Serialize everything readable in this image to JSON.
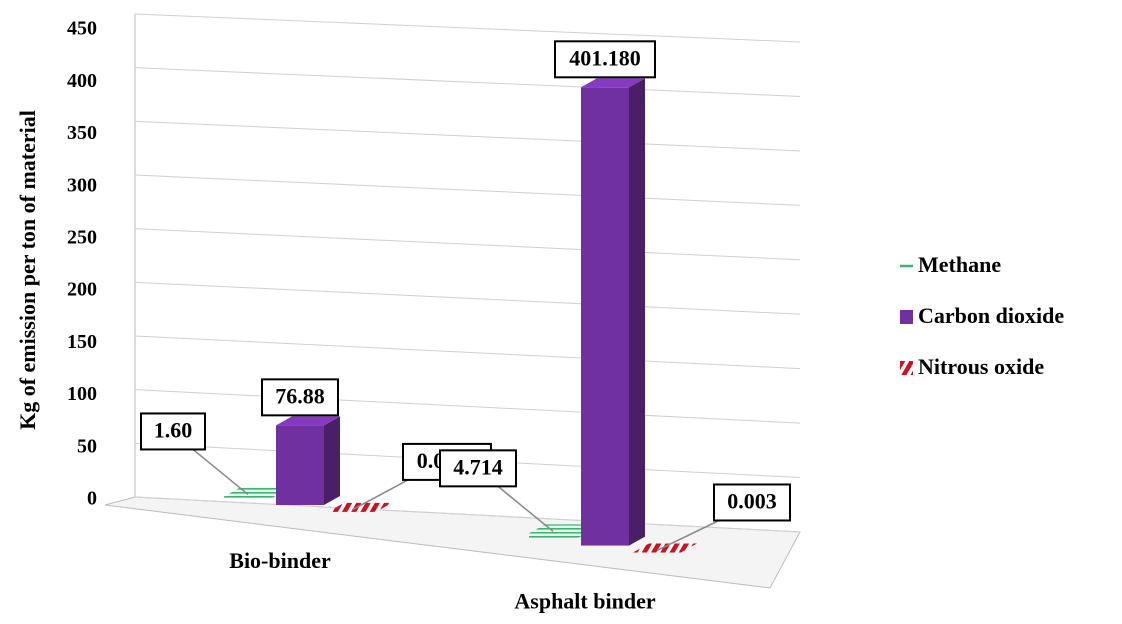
{
  "chart_data": {
    "type": "bar3d",
    "y_label": "Kg of emission per ton of material",
    "categories": [
      "Bio-binder",
      "Asphalt binder"
    ],
    "series": [
      {
        "name": "Methane",
        "color": "#3cb371",
        "values": [
          1.6,
          4.714
        ],
        "value_labels": [
          "1.60",
          "4.714"
        ]
      },
      {
        "name": "Carbon dioxide",
        "color": "#7030a0",
        "values": [
          76.88,
          401.18
        ],
        "value_labels": [
          "76.88",
          "401.180"
        ]
      },
      {
        "name": "Nitrous oxide",
        "color": "#d01020",
        "values": [
          0.0017,
          0.003
        ],
        "value_labels": [
          "0.0017",
          "0.003"
        ]
      }
    ],
    "ylim": [
      0,
      450
    ],
    "yticks": [
      0,
      50,
      100,
      150,
      200,
      250,
      300,
      350,
      400,
      450
    ],
    "grid": true,
    "legend": "right"
  }
}
